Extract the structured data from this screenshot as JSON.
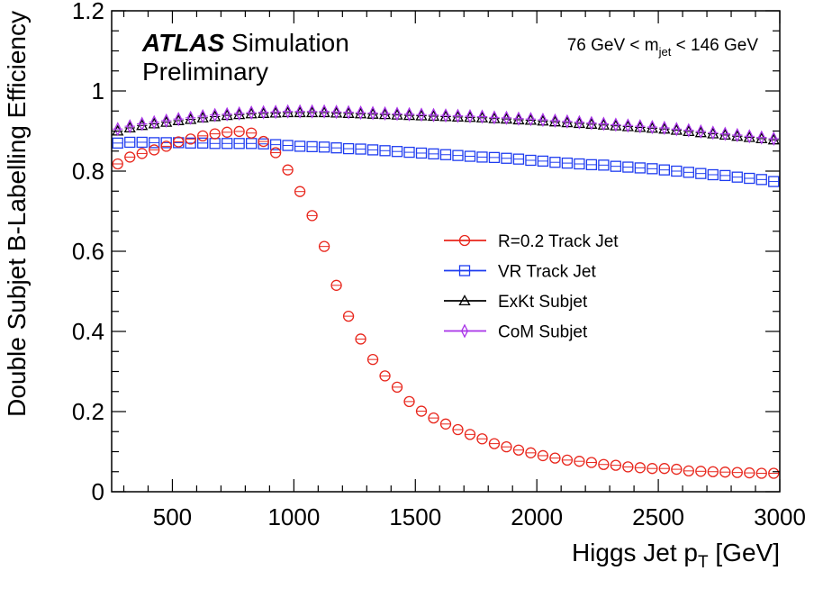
{
  "chart_data": {
    "type": "scatter",
    "ylabel": "Double Subjet B-Labelling Efficiency",
    "xlabel_main": "Higgs Jet p",
    "xlabel_sub": "T",
    "xlabel_unit": " [GeV]",
    "xlim": [
      250,
      3000
    ],
    "ylim": [
      0,
      1.2
    ],
    "x_ticks": [
      500,
      1000,
      1500,
      2000,
      2500,
      3000
    ],
    "x_tick_labels": [
      "500",
      "1000",
      "1500",
      "2000",
      "2500",
      "3000"
    ],
    "y_ticks": [
      0,
      0.2,
      0.4,
      0.6,
      0.8,
      1,
      1.2
    ],
    "y_tick_labels": [
      "0",
      "0.2",
      "0.4",
      "0.6",
      "0.8",
      "1",
      "1.2"
    ],
    "atlas_label": "ATLAS",
    "atlas_suffix": " Simulation",
    "atlas_line2": "Preliminary",
    "mass_window": {
      "pre": "76 GeV < m",
      "sub": "jet",
      "post": " < 146 GeV"
    },
    "legend_position": "center-right",
    "x": [
      275,
      325,
      375,
      425,
      475,
      525,
      575,
      625,
      675,
      725,
      775,
      825,
      875,
      925,
      975,
      1025,
      1075,
      1125,
      1175,
      1225,
      1275,
      1325,
      1375,
      1425,
      1475,
      1525,
      1575,
      1625,
      1675,
      1725,
      1775,
      1825,
      1875,
      1925,
      1975,
      2025,
      2075,
      2125,
      2175,
      2225,
      2275,
      2325,
      2375,
      2425,
      2475,
      2525,
      2575,
      2625,
      2675,
      2725,
      2775,
      2825,
      2875,
      2925,
      2975
    ],
    "series": [
      {
        "name": "R=0.2 Track Jet",
        "color": "#e8261c",
        "marker": "circle",
        "values": [
          0.818,
          0.835,
          0.844,
          0.853,
          0.862,
          0.873,
          0.88,
          0.888,
          0.893,
          0.897,
          0.899,
          0.895,
          0.874,
          0.846,
          0.803,
          0.749,
          0.689,
          0.612,
          0.515,
          0.438,
          0.381,
          0.33,
          0.289,
          0.261,
          0.225,
          0.201,
          0.184,
          0.169,
          0.155,
          0.143,
          0.132,
          0.12,
          0.112,
          0.104,
          0.097,
          0.09,
          0.084,
          0.079,
          0.076,
          0.073,
          0.068,
          0.066,
          0.062,
          0.06,
          0.058,
          0.058,
          0.056,
          0.052,
          0.051,
          0.05,
          0.049,
          0.048,
          0.047,
          0.046,
          0.046
        ]
      },
      {
        "name": "VR Track Jet",
        "color": "#1e3cf0",
        "marker": "square",
        "values": [
          0.87,
          0.872,
          0.872,
          0.871,
          0.871,
          0.871,
          0.87,
          0.87,
          0.869,
          0.869,
          0.869,
          0.869,
          0.868,
          0.866,
          0.864,
          0.862,
          0.861,
          0.86,
          0.858,
          0.856,
          0.855,
          0.853,
          0.851,
          0.849,
          0.847,
          0.845,
          0.843,
          0.841,
          0.839,
          0.837,
          0.835,
          0.834,
          0.832,
          0.83,
          0.827,
          0.825,
          0.822,
          0.82,
          0.818,
          0.816,
          0.815,
          0.812,
          0.81,
          0.808,
          0.806,
          0.803,
          0.8,
          0.797,
          0.794,
          0.791,
          0.789,
          0.785,
          0.782,
          0.779,
          0.774
        ]
      },
      {
        "name": "ExKt Subjet",
        "color": "#000000",
        "marker": "triangle",
        "values": [
          0.9,
          0.908,
          0.914,
          0.918,
          0.922,
          0.926,
          0.929,
          0.933,
          0.936,
          0.939,
          0.941,
          0.943,
          0.944,
          0.945,
          0.946,
          0.946,
          0.946,
          0.946,
          0.945,
          0.944,
          0.943,
          0.942,
          0.941,
          0.94,
          0.939,
          0.938,
          0.937,
          0.936,
          0.935,
          0.934,
          0.933,
          0.931,
          0.93,
          0.928,
          0.927,
          0.925,
          0.923,
          0.921,
          0.919,
          0.917,
          0.915,
          0.913,
          0.911,
          0.909,
          0.907,
          0.905,
          0.902,
          0.899,
          0.896,
          0.893,
          0.89,
          0.887,
          0.884,
          0.881,
          0.878
        ]
      },
      {
        "name": "CoM Subjet",
        "color": "#a832e8",
        "marker": "diamond",
        "values": [
          0.905,
          0.912,
          0.918,
          0.922,
          0.926,
          0.93,
          0.933,
          0.937,
          0.94,
          0.942,
          0.944,
          0.946,
          0.947,
          0.948,
          0.949,
          0.949,
          0.949,
          0.949,
          0.948,
          0.947,
          0.946,
          0.945,
          0.944,
          0.943,
          0.942,
          0.941,
          0.94,
          0.939,
          0.938,
          0.937,
          0.936,
          0.934,
          0.933,
          0.931,
          0.93,
          0.928,
          0.926,
          0.924,
          0.922,
          0.92,
          0.918,
          0.916,
          0.914,
          0.912,
          0.91,
          0.908,
          0.905,
          0.902,
          0.899,
          0.896,
          0.893,
          0.89,
          0.887,
          0.884,
          0.881
        ]
      }
    ]
  }
}
